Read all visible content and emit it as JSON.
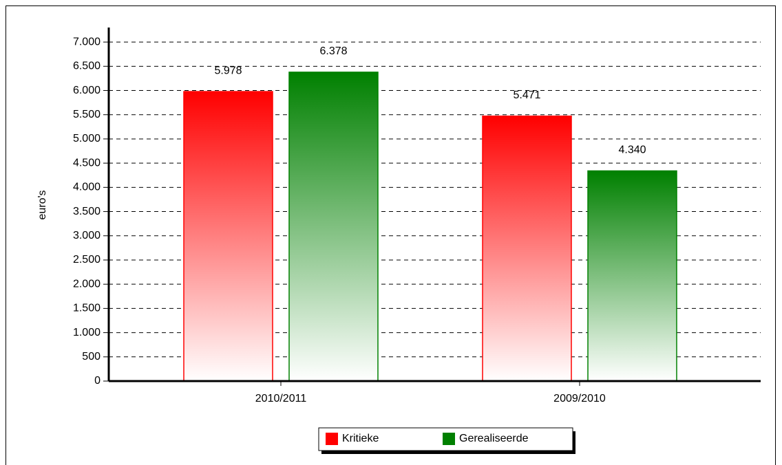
{
  "chart_data": {
    "type": "bar",
    "y_label": "euro's",
    "categories": [
      "2010/2011",
      "2009/2010"
    ],
    "series": [
      {
        "name": "Kritieke",
        "color": "#ff0000",
        "values": [
          5978,
          5471
        ],
        "value_labels": [
          "5.978",
          "5.471"
        ]
      },
      {
        "name": "Gerealiseerde",
        "color": "#008000",
        "values": [
          6378,
          4340
        ],
        "value_labels": [
          "6.378",
          "4.340"
        ]
      }
    ],
    "ylim": [
      0,
      7300
    ],
    "yticks": [
      0,
      500,
      {
        "value": 1000,
        "label": "1.000"
      },
      {
        "value": 1500,
        "label": "1.500"
      },
      {
        "value": 2000,
        "label": "2.000"
      },
      {
        "value": 2500,
        "label": "2.500"
      },
      {
        "value": 3000,
        "label": "3.000"
      },
      {
        "value": 3500,
        "label": "3.500"
      },
      {
        "value": 4000,
        "label": "4.000"
      },
      {
        "value": 4500,
        "label": "4.500"
      },
      {
        "value": 5000,
        "label": "5.000"
      },
      {
        "value": 5500,
        "label": "5.500"
      },
      {
        "value": 6000,
        "label": "6.000"
      },
      {
        "value": 6500,
        "label": "6.500"
      },
      {
        "value": 7000,
        "label": "7.000"
      }
    ],
    "grid": true,
    "legend": "bottom"
  }
}
